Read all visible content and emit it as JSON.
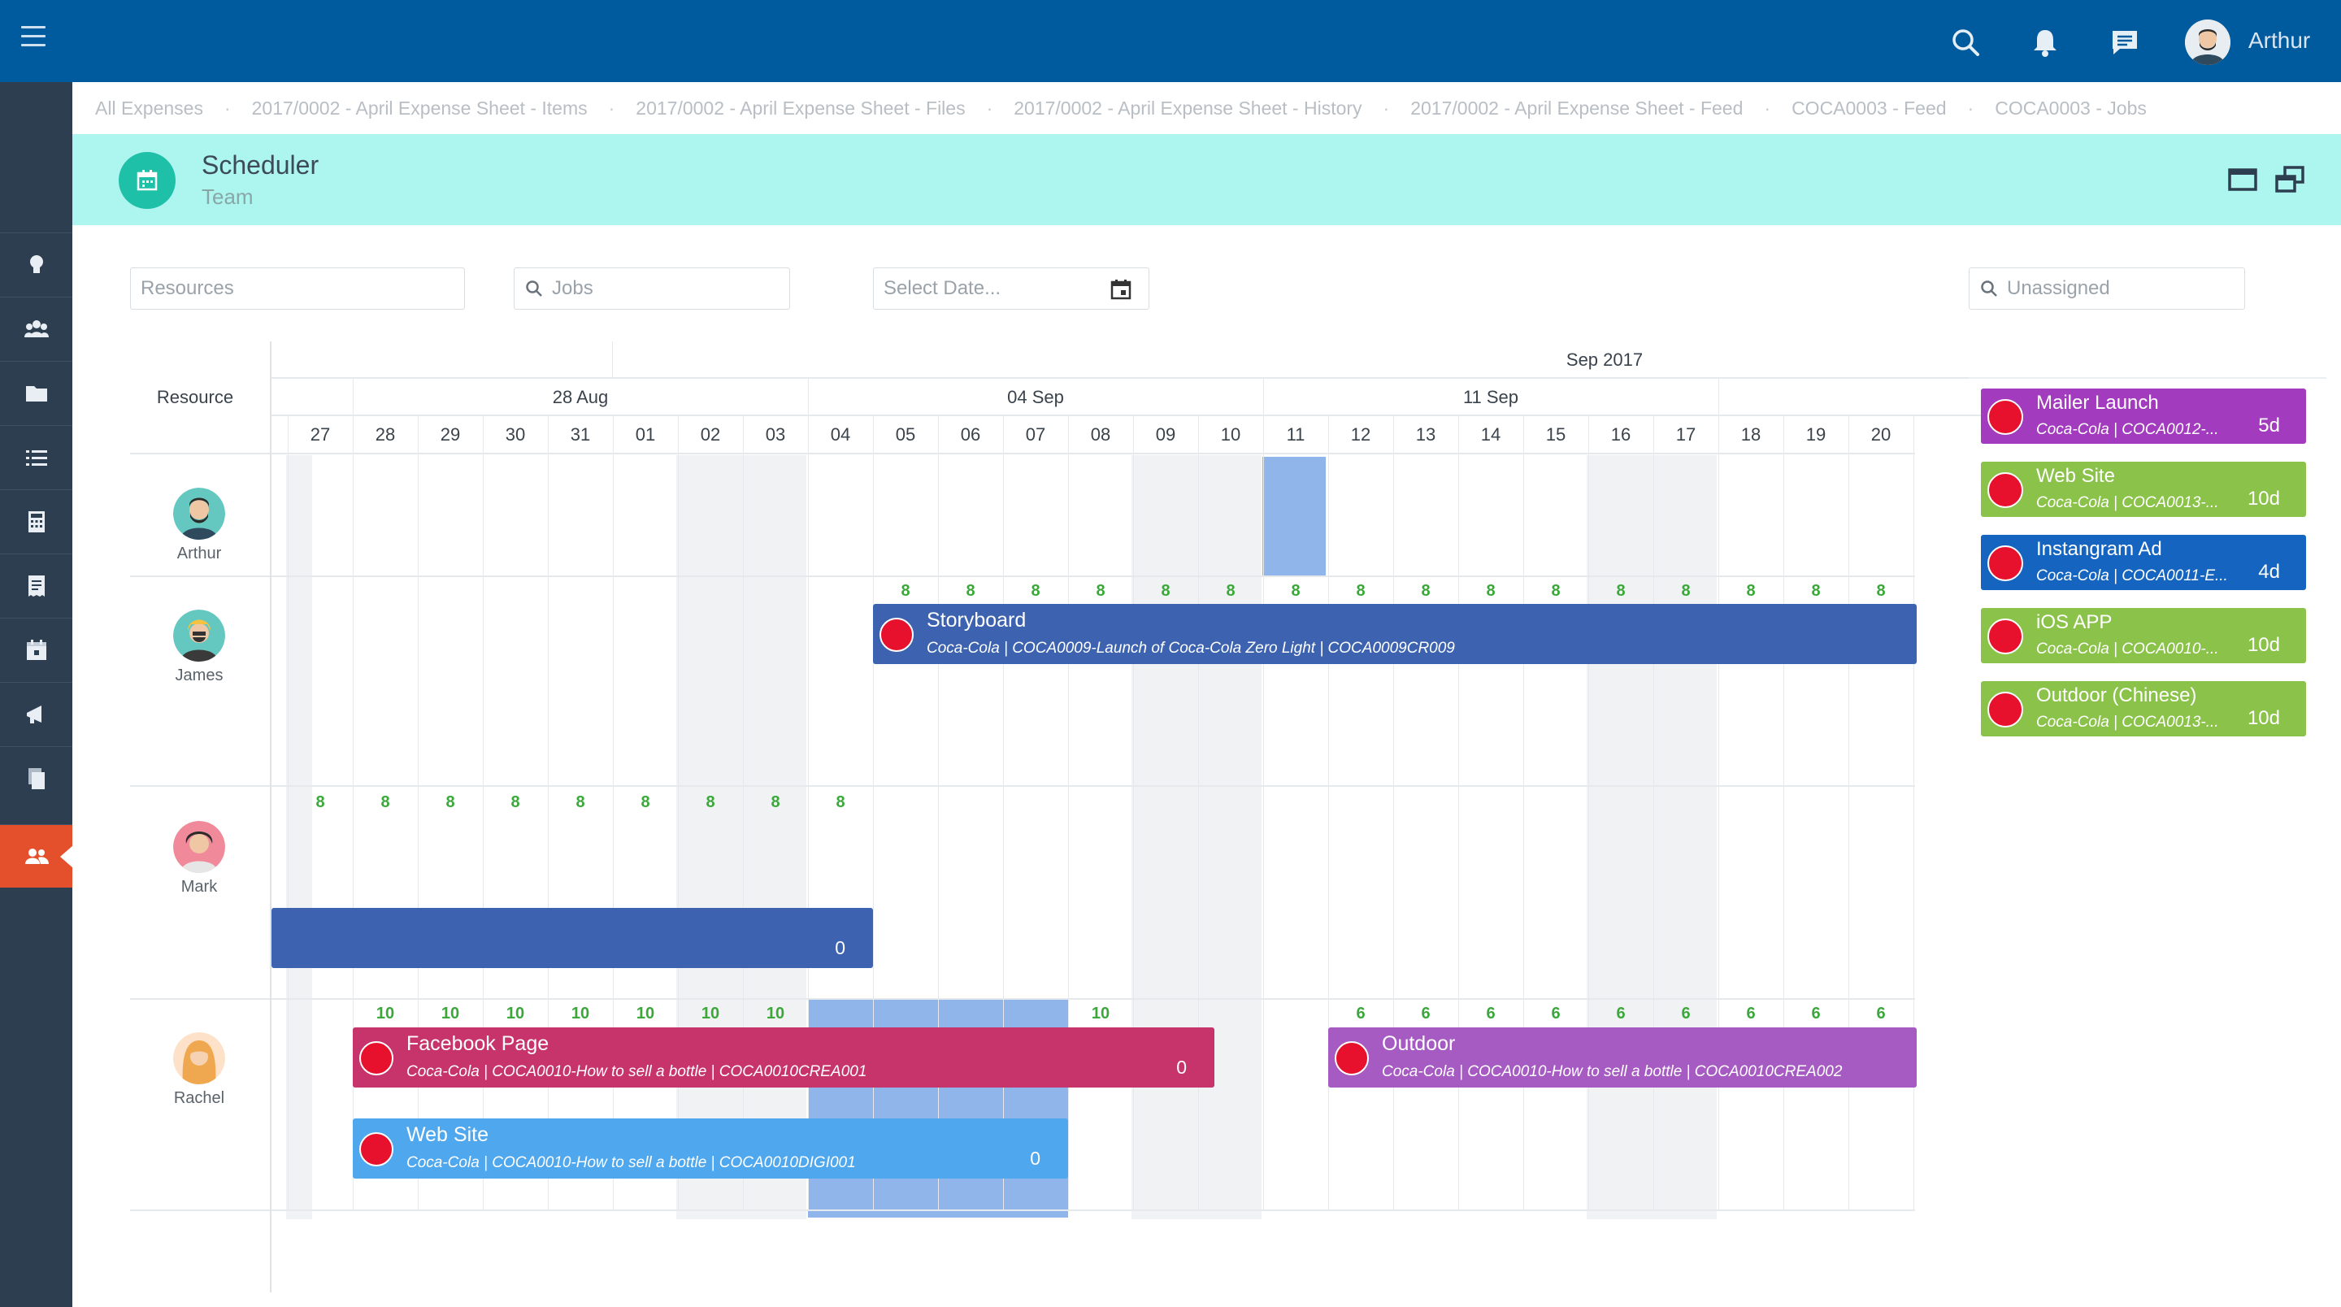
{
  "topbar": {
    "user_name": "Arthur"
  },
  "tabs": [
    "All Expenses",
    "2017/0002 - April Expense Sheet - Items",
    "2017/0002 - April Expense Sheet - Files",
    "2017/0002 - April Expense Sheet - History",
    "2017/0002 - April Expense Sheet - Feed",
    "COCA0003 - Feed",
    "COCA0003 - Jobs"
  ],
  "tab_separator": "·",
  "header": {
    "title": "Scheduler",
    "subtitle": "Team"
  },
  "filters": {
    "resources_placeholder": "Resources",
    "jobs_placeholder": "Jobs",
    "date_placeholder": "Select Date...",
    "unassigned_placeholder": "Unassigned"
  },
  "schedule": {
    "resource_header": "Resource",
    "month_label": "Sep 2017",
    "week_labels": [
      "28 Aug",
      "04 Sep",
      "11 Sep"
    ],
    "days": [
      "27",
      "28",
      "29",
      "30",
      "31",
      "01",
      "02",
      "03",
      "04",
      "05",
      "06",
      "07",
      "08",
      "09",
      "10",
      "11",
      "12",
      "13",
      "14",
      "15",
      "16",
      "17",
      "18",
      "19",
      "20"
    ],
    "resources": [
      {
        "name": "Arthur"
      },
      {
        "name": "James"
      },
      {
        "name": "Mark"
      },
      {
        "name": "Rachel"
      }
    ],
    "hours": {
      "james": [
        "8",
        "8",
        "8",
        "8",
        "8",
        "8",
        "8",
        "8",
        "8",
        "8",
        "8",
        "8",
        "8",
        "8",
        "8",
        "8"
      ],
      "mark": [
        "8",
        "8",
        "8",
        "8",
        "8",
        "8",
        "8",
        "8",
        "8"
      ],
      "rachel_a": [
        "10",
        "10",
        "10",
        "10",
        "10",
        "10",
        "10"
      ],
      "rachel_b": "10",
      "rachel_c": [
        "6",
        "6",
        "6",
        "6",
        "6",
        "6",
        "6",
        "6",
        "6"
      ]
    },
    "bars": {
      "storyboard": {
        "title": "Storyboard",
        "subtitle": "Coca-Cola | COCA0009-Launch of Coca-Cola Zero Light | COCA0009CR009"
      },
      "mark_bar": {
        "value": "0"
      },
      "facebook": {
        "title": "Facebook Page",
        "subtitle": "Coca-Cola | COCA0010-How to sell a bottle | COCA0010CREA001",
        "value": "0"
      },
      "website": {
        "title": "Web Site",
        "subtitle": "Coca-Cola | COCA0010-How to sell a bottle | COCA0010DIGI001",
        "value": "0"
      },
      "outdoor": {
        "title": "Outdoor",
        "subtitle": "Coca-Cola | COCA0010-How to sell a bottle | COCA0010CREA002"
      }
    }
  },
  "unassigned": [
    {
      "title": "Mailer Launch",
      "subtitle": "Coca-Cola | COCA0012-...",
      "duration": "5d",
      "color": "#a23bbd"
    },
    {
      "title": "Web Site",
      "subtitle": "Coca-Cola | COCA0013-...",
      "duration": "10d",
      "color": "#8bc34a"
    },
    {
      "title": "Instangram Ad",
      "subtitle": "Coca-Cola | COCA0011-E...",
      "duration": "4d",
      "color": "#1565c0"
    },
    {
      "title": "iOS APP",
      "subtitle": "Coca-Cola | COCA0010-...",
      "duration": "10d",
      "color": "#8bc34a"
    },
    {
      "title": "Outdoor (Chinese)",
      "subtitle": "Coca-Cola | COCA0013-...",
      "duration": "10d",
      "color": "#8bc34a"
    }
  ],
  "icons": {
    "sidebar": [
      "lightbulb-icon",
      "team-icon",
      "folder-icon",
      "list-icon",
      "calculator-icon",
      "receipt-icon",
      "calendar-icon",
      "megaphone-icon",
      "documents-icon",
      "users-icon"
    ]
  }
}
